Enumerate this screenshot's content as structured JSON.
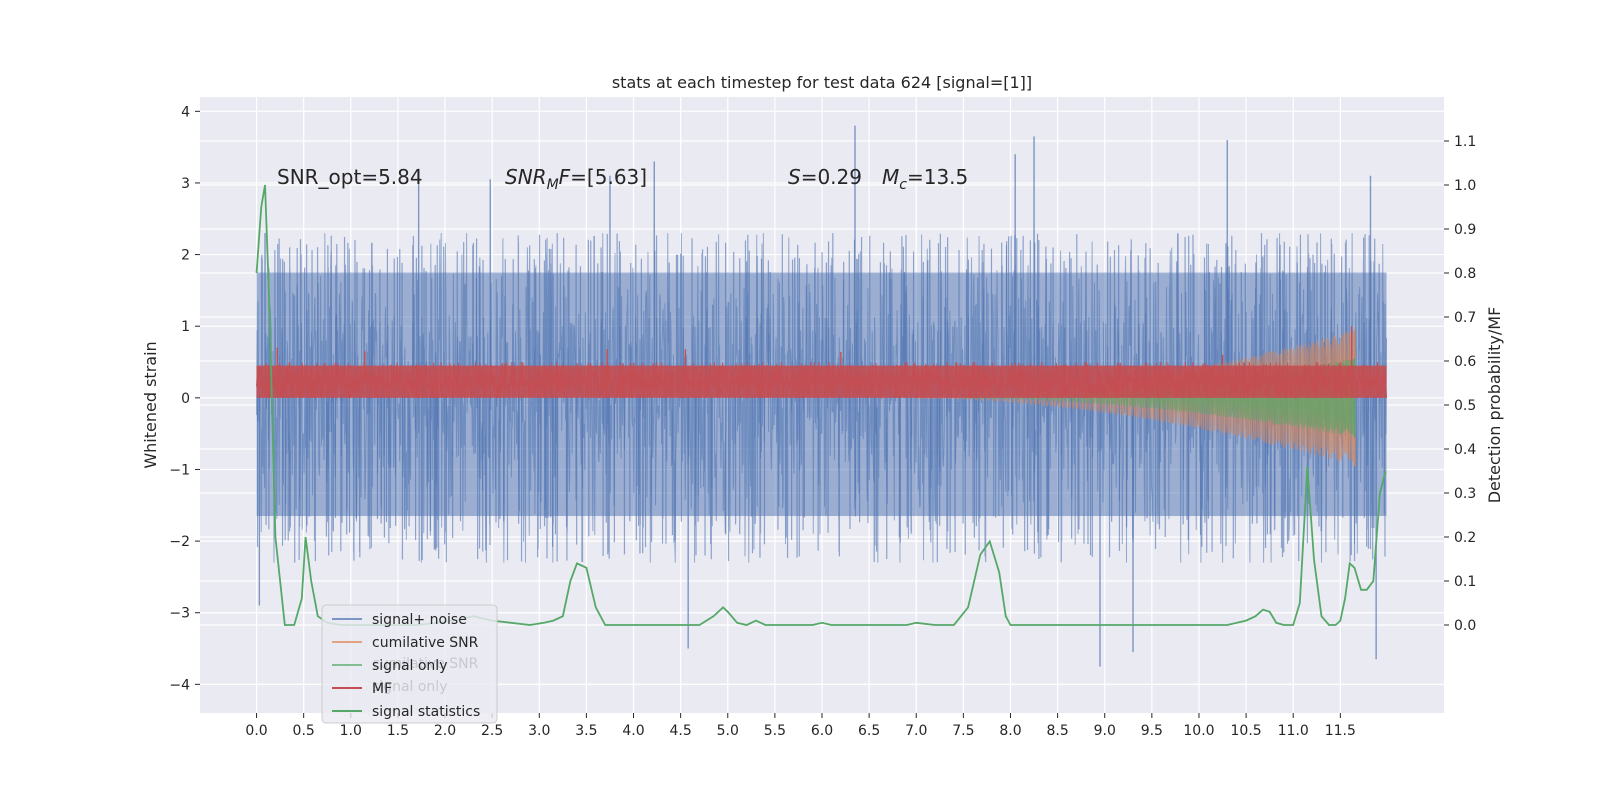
{
  "chart_data": {
    "type": "line",
    "title": "stats at each timestep for test data 624 [signal=[1]]",
    "ylabel_left": "Whitened strain",
    "ylabel_right": "Detection probability/MF",
    "xlim": [
      -0.6,
      12.6
    ],
    "ylim_left": [
      -4.4,
      4.2
    ],
    "ylim_right": [
      -0.2,
      1.2
    ],
    "xticks": [
      0.0,
      0.5,
      1.0,
      1.5,
      2.0,
      2.5,
      3.0,
      3.5,
      4.0,
      4.5,
      5.0,
      5.5,
      6.0,
      6.5,
      7.0,
      7.5,
      8.0,
      8.5,
      9.0,
      9.5,
      10.0,
      10.5,
      11.0,
      11.5
    ],
    "xtick_labels": [
      "0.0",
      "0.5",
      "1.0",
      "1.5",
      "2.0",
      "2.5",
      "3.0",
      "3.5",
      "4.0",
      "4.5",
      "5.0",
      "5.5",
      "6.0",
      "6.5",
      "7.0",
      "7.5",
      "8.0",
      "8.5",
      "9.0",
      "9.5",
      "10.0",
      "10.5",
      "11.0",
      "11.5"
    ],
    "yticks_left": [
      -4,
      -3,
      -2,
      -1,
      0,
      1,
      2,
      3,
      4
    ],
    "yticks_right": [
      0.0,
      0.1,
      0.2,
      0.3,
      0.4,
      0.5,
      0.6,
      0.7,
      0.8,
      0.9,
      1.0,
      1.1
    ],
    "ytick_labels_right": [
      "0.0",
      "0.1",
      "0.2",
      "0.3",
      "0.4",
      "0.5",
      "0.6",
      "0.7",
      "0.8",
      "0.9",
      "1.0",
      "1.1"
    ],
    "grid": true,
    "legend_position": "lower-left",
    "annotations": [
      {
        "plain": "SNR_opt=5.84"
      },
      {
        "italic": "SNR",
        "sub": "M",
        "rest_italic": "F",
        "plain": "=[5.63]"
      },
      {
        "italic": "S",
        "plain": "=0.29"
      },
      {
        "italic": "M",
        "sub": "c",
        "plain": "=13.5"
      }
    ],
    "legend_ghost": [
      "cumilative SNR",
      "signal only"
    ],
    "series": [
      {
        "name": "signal+ noise",
        "color": "#4c72b0",
        "axis": "left",
        "style": "dense-noise",
        "x_range": [
          0.0,
          11.99
        ],
        "band": [
          -1.65,
          1.75
        ],
        "envelope": [
          -2.3,
          2.3
        ],
        "extremes": [
          {
            "x": 0.03,
            "y": -2.9
          },
          {
            "x": 0.09,
            "y": 2.3
          },
          {
            "x": 1.72,
            "y": 3.2
          },
          {
            "x": 2.48,
            "y": 3.05
          },
          {
            "x": 3.75,
            "y": 3.1
          },
          {
            "x": 4.22,
            "y": 3.3
          },
          {
            "x": 4.58,
            "y": -3.5
          },
          {
            "x": 6.35,
            "y": 3.8
          },
          {
            "x": 8.05,
            "y": 3.4
          },
          {
            "x": 8.25,
            "y": 3.65
          },
          {
            "x": 8.95,
            "y": -3.75
          },
          {
            "x": 9.3,
            "y": -3.55
          },
          {
            "x": 10.3,
            "y": 3.6
          },
          {
            "x": 11.82,
            "y": 3.1
          },
          {
            "x": 11.88,
            "y": -3.65
          }
        ]
      },
      {
        "name": "cumilative SNR",
        "color": "#dd8452",
        "axis": "left",
        "style": "chirp",
        "x_range": [
          7.0,
          11.65
        ],
        "amplitude": [
          0.0,
          0.95
        ]
      },
      {
        "name": "signal only",
        "color": "#55a868",
        "axis": "left",
        "style": "chirp",
        "x_range": [
          7.5,
          11.65
        ],
        "amplitude": [
          0.0,
          0.55
        ]
      },
      {
        "name": "MF",
        "color": "#c44e52",
        "axis": "left",
        "style": "dense-noise",
        "x_range": [
          0.0,
          11.99
        ],
        "band": [
          0.0,
          0.45
        ],
        "envelope": [
          0.0,
          0.5
        ],
        "extremes": [
          {
            "x": 0.22,
            "y": 0.7
          },
          {
            "x": 1.15,
            "y": 0.65
          },
          {
            "x": 3.72,
            "y": 0.68
          },
          {
            "x": 4.55,
            "y": 0.68
          },
          {
            "x": 6.2,
            "y": 0.64
          },
          {
            "x": 10.25,
            "y": 0.6
          },
          {
            "x": 11.62,
            "y": 1.0
          }
        ]
      },
      {
        "name": "signal statistics",
        "color": "#55a868",
        "axis": "right",
        "style": "line",
        "x": [
          0.0,
          0.05,
          0.09,
          0.14,
          0.2,
          0.3,
          0.4,
          0.48,
          0.52,
          0.58,
          0.65,
          0.75,
          0.9,
          1.1,
          1.3,
          1.5,
          1.7,
          1.9,
          2.1,
          2.3,
          2.5,
          2.7,
          2.9,
          3.05,
          3.15,
          3.25,
          3.33,
          3.4,
          3.5,
          3.6,
          3.7,
          3.9,
          4.1,
          4.3,
          4.5,
          4.7,
          4.85,
          4.95,
          5.0,
          5.1,
          5.2,
          5.3,
          5.4,
          5.5,
          5.7,
          5.9,
          6.0,
          6.1,
          6.3,
          6.5,
          6.7,
          6.9,
          7.0,
          7.2,
          7.4,
          7.55,
          7.68,
          7.78,
          7.88,
          7.95,
          8.0,
          8.2,
          8.5,
          9.0,
          9.5,
          10.0,
          10.3,
          10.5,
          10.6,
          10.68,
          10.75,
          10.82,
          10.9,
          11.0,
          11.07,
          11.15,
          11.22,
          11.3,
          11.38,
          11.45,
          11.5,
          11.55,
          11.6,
          11.65,
          11.72,
          11.78,
          11.85,
          11.92,
          11.98
        ],
        "y": [
          0.8,
          0.95,
          1.0,
          0.7,
          0.2,
          0.0,
          0.0,
          0.06,
          0.2,
          0.1,
          0.02,
          0.005,
          0.0,
          0.0,
          0.0,
          0.0,
          0.0,
          0.005,
          0.01,
          0.02,
          0.01,
          0.005,
          0.0,
          0.005,
          0.01,
          0.02,
          0.1,
          0.14,
          0.13,
          0.04,
          0.0,
          0.0,
          0.0,
          0.0,
          0.0,
          0.0,
          0.02,
          0.04,
          0.03,
          0.005,
          0.0,
          0.01,
          0.0,
          0.0,
          0.0,
          0.0,
          0.005,
          0.0,
          0.0,
          0.0,
          0.0,
          0.0,
          0.005,
          0.0,
          0.0,
          0.04,
          0.16,
          0.19,
          0.12,
          0.02,
          0.0,
          0.0,
          0.0,
          0.0,
          0.0,
          0.0,
          0.0,
          0.01,
          0.02,
          0.035,
          0.03,
          0.005,
          0.0,
          0.0,
          0.05,
          0.36,
          0.15,
          0.02,
          0.0,
          0.0,
          0.01,
          0.06,
          0.14,
          0.13,
          0.08,
          0.08,
          0.1,
          0.3,
          0.35
        ]
      }
    ]
  }
}
